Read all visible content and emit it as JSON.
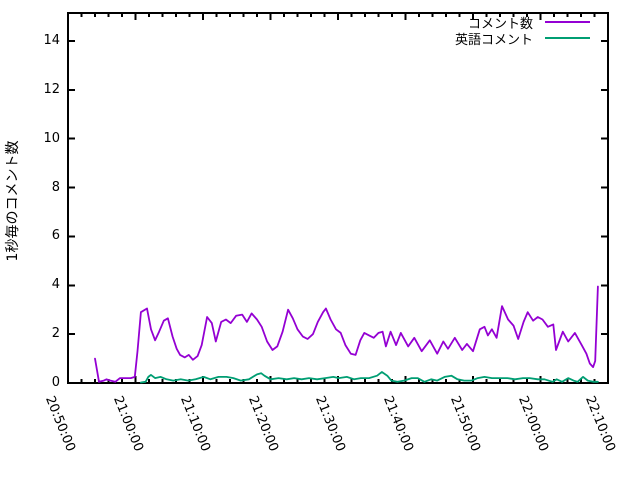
{
  "colors": {
    "background": "#ffffff",
    "axis": "#000000",
    "text": "#000000",
    "series1": "#9400d3",
    "series2": "#009e73"
  },
  "chart_data": {
    "type": "line",
    "title": "",
    "xlabel": "",
    "ylabel": "1秒毎のコメント数",
    "grid": "off",
    "legend_position": "top-right-inside",
    "x_range_minutes": [
      0,
      80
    ],
    "x_start_time": "20:50:00",
    "x_end_time": "22:10:00",
    "x_major_tick_minutes": 10,
    "x_minor_tick_minutes": 2,
    "x_tick_labels": [
      "20:50:00",
      "21:00:00",
      "21:10:00",
      "21:20:00",
      "21:30:00",
      "21:40:00",
      "21:50:00",
      "22:00:00",
      "22:10:00"
    ],
    "y_ticks": [
      0,
      2,
      4,
      6,
      8,
      10,
      12,
      14
    ],
    "ylim": [
      0,
      15.1
    ],
    "series": [
      {
        "name": "コメント数",
        "color": "#9400d3",
        "points": [
          [
            4.0,
            1.0
          ],
          [
            4.6,
            0.05
          ],
          [
            5.3,
            0.1
          ],
          [
            5.7,
            0.15
          ],
          [
            6.3,
            0.1
          ],
          [
            7.0,
            0.05
          ],
          [
            7.7,
            0.2
          ],
          [
            8.6,
            0.2
          ],
          [
            9.3,
            0.2
          ],
          [
            9.9,
            0.25
          ],
          [
            10.3,
            1.3
          ],
          [
            10.8,
            2.9
          ],
          [
            11.7,
            3.05
          ],
          [
            12.3,
            2.2
          ],
          [
            12.9,
            1.75
          ],
          [
            13.5,
            2.1
          ],
          [
            14.2,
            2.55
          ],
          [
            14.8,
            2.65
          ],
          [
            15.5,
            1.9
          ],
          [
            16.1,
            1.4
          ],
          [
            16.6,
            1.15
          ],
          [
            17.3,
            1.05
          ],
          [
            17.9,
            1.15
          ],
          [
            18.5,
            0.95
          ],
          [
            19.2,
            1.1
          ],
          [
            19.8,
            1.55
          ],
          [
            20.6,
            2.7
          ],
          [
            21.3,
            2.45
          ],
          [
            21.9,
            1.7
          ],
          [
            22.7,
            2.5
          ],
          [
            23.4,
            2.6
          ],
          [
            24.1,
            2.45
          ],
          [
            24.9,
            2.75
          ],
          [
            25.8,
            2.8
          ],
          [
            26.5,
            2.5
          ],
          [
            27.2,
            2.85
          ],
          [
            28.0,
            2.6
          ],
          [
            28.7,
            2.3
          ],
          [
            29.5,
            1.7
          ],
          [
            30.3,
            1.35
          ],
          [
            31.0,
            1.5
          ],
          [
            31.8,
            2.1
          ],
          [
            32.6,
            3.0
          ],
          [
            33.3,
            2.65
          ],
          [
            34.0,
            2.2
          ],
          [
            34.8,
            1.9
          ],
          [
            35.5,
            1.8
          ],
          [
            36.3,
            2.0
          ],
          [
            37.0,
            2.5
          ],
          [
            37.8,
            2.9
          ],
          [
            38.2,
            3.05
          ],
          [
            38.9,
            2.6
          ],
          [
            39.7,
            2.2
          ],
          [
            40.4,
            2.05
          ],
          [
            41.1,
            1.55
          ],
          [
            41.9,
            1.2
          ],
          [
            42.6,
            1.15
          ],
          [
            43.3,
            1.75
          ],
          [
            43.9,
            2.05
          ],
          [
            44.6,
            1.95
          ],
          [
            45.3,
            1.85
          ],
          [
            46.0,
            2.05
          ],
          [
            46.6,
            2.1
          ],
          [
            47.1,
            1.5
          ],
          [
            47.8,
            2.1
          ],
          [
            48.6,
            1.55
          ],
          [
            49.3,
            2.05
          ],
          [
            50.4,
            1.5
          ],
          [
            51.3,
            1.85
          ],
          [
            52.4,
            1.3
          ],
          [
            53.6,
            1.75
          ],
          [
            54.7,
            1.2
          ],
          [
            55.6,
            1.7
          ],
          [
            56.3,
            1.4
          ],
          [
            57.3,
            1.85
          ],
          [
            58.4,
            1.35
          ],
          [
            59.1,
            1.6
          ],
          [
            60.0,
            1.3
          ],
          [
            61.0,
            2.2
          ],
          [
            61.7,
            2.3
          ],
          [
            62.2,
            1.95
          ],
          [
            62.8,
            2.2
          ],
          [
            63.5,
            1.85
          ],
          [
            64.3,
            3.15
          ],
          [
            65.2,
            2.6
          ],
          [
            66.0,
            2.35
          ],
          [
            66.7,
            1.8
          ],
          [
            67.5,
            2.5
          ],
          [
            68.1,
            2.9
          ],
          [
            68.9,
            2.55
          ],
          [
            69.6,
            2.7
          ],
          [
            70.3,
            2.6
          ],
          [
            71.1,
            2.3
          ],
          [
            71.9,
            2.4
          ],
          [
            72.3,
            1.35
          ],
          [
            73.3,
            2.1
          ],
          [
            74.1,
            1.7
          ],
          [
            75.1,
            2.05
          ],
          [
            76.1,
            1.55
          ],
          [
            76.8,
            1.2
          ],
          [
            77.3,
            0.8
          ],
          [
            77.8,
            0.65
          ],
          [
            78.1,
            0.9
          ],
          [
            78.5,
            3.95
          ]
        ]
      },
      {
        "name": "英語コメント",
        "color": "#009e73",
        "points": [
          [
            10.8,
            0.02
          ],
          [
            11.5,
            0.05
          ],
          [
            11.9,
            0.25
          ],
          [
            12.3,
            0.33
          ],
          [
            12.9,
            0.2
          ],
          [
            13.7,
            0.25
          ],
          [
            14.6,
            0.15
          ],
          [
            15.6,
            0.1
          ],
          [
            16.7,
            0.15
          ],
          [
            17.8,
            0.1
          ],
          [
            18.9,
            0.15
          ],
          [
            20.1,
            0.25
          ],
          [
            21.1,
            0.15
          ],
          [
            22.3,
            0.25
          ],
          [
            23.5,
            0.25
          ],
          [
            24.5,
            0.2
          ],
          [
            25.6,
            0.1
          ],
          [
            26.8,
            0.15
          ],
          [
            28.0,
            0.35
          ],
          [
            28.6,
            0.4
          ],
          [
            29.1,
            0.3
          ],
          [
            30.0,
            0.15
          ],
          [
            31.2,
            0.2
          ],
          [
            32.4,
            0.15
          ],
          [
            33.5,
            0.2
          ],
          [
            34.6,
            0.15
          ],
          [
            35.7,
            0.2
          ],
          [
            36.9,
            0.15
          ],
          [
            38.1,
            0.2
          ],
          [
            39.3,
            0.25
          ],
          [
            40.1,
            0.2
          ],
          [
            41.3,
            0.25
          ],
          [
            42.4,
            0.15
          ],
          [
            43.4,
            0.2
          ],
          [
            44.6,
            0.2
          ],
          [
            45.8,
            0.3
          ],
          [
            46.5,
            0.45
          ],
          [
            47.3,
            0.3
          ],
          [
            47.9,
            0.1
          ],
          [
            48.8,
            0.05
          ],
          [
            49.8,
            0.1
          ],
          [
            50.9,
            0.2
          ],
          [
            51.8,
            0.2
          ],
          [
            52.8,
            0.05
          ],
          [
            53.8,
            0.15
          ],
          [
            54.7,
            0.1
          ],
          [
            55.8,
            0.25
          ],
          [
            56.8,
            0.3
          ],
          [
            57.7,
            0.15
          ],
          [
            58.7,
            0.1
          ],
          [
            59.8,
            0.1
          ],
          [
            60.7,
            0.2
          ],
          [
            61.7,
            0.25
          ],
          [
            62.8,
            0.2
          ],
          [
            63.9,
            0.2
          ],
          [
            65.1,
            0.2
          ],
          [
            66.2,
            0.15
          ],
          [
            67.4,
            0.2
          ],
          [
            68.4,
            0.2
          ],
          [
            69.6,
            0.15
          ],
          [
            70.6,
            0.15
          ],
          [
            71.8,
            0.05
          ],
          [
            72.4,
            0.15
          ],
          [
            73.2,
            0.05
          ],
          [
            74.1,
            0.2
          ],
          [
            74.9,
            0.1
          ],
          [
            75.5,
            0.05
          ],
          [
            76.3,
            0.25
          ],
          [
            77.0,
            0.1
          ],
          [
            77.8,
            0.05
          ],
          [
            78.5,
            0.05
          ]
        ]
      }
    ]
  }
}
